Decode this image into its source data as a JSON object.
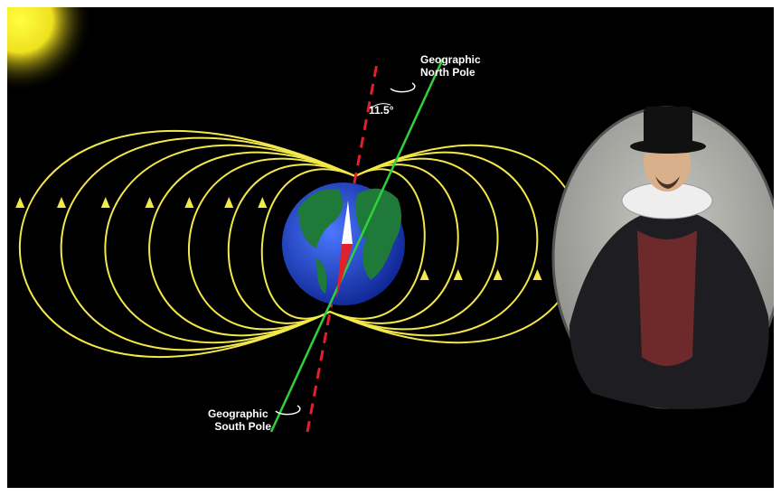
{
  "labels": {
    "north_pole": [
      "Geographic",
      "North Pole"
    ],
    "angle": "11.5°",
    "south_pole": [
      "Geographic",
      "South Pole"
    ]
  }
}
